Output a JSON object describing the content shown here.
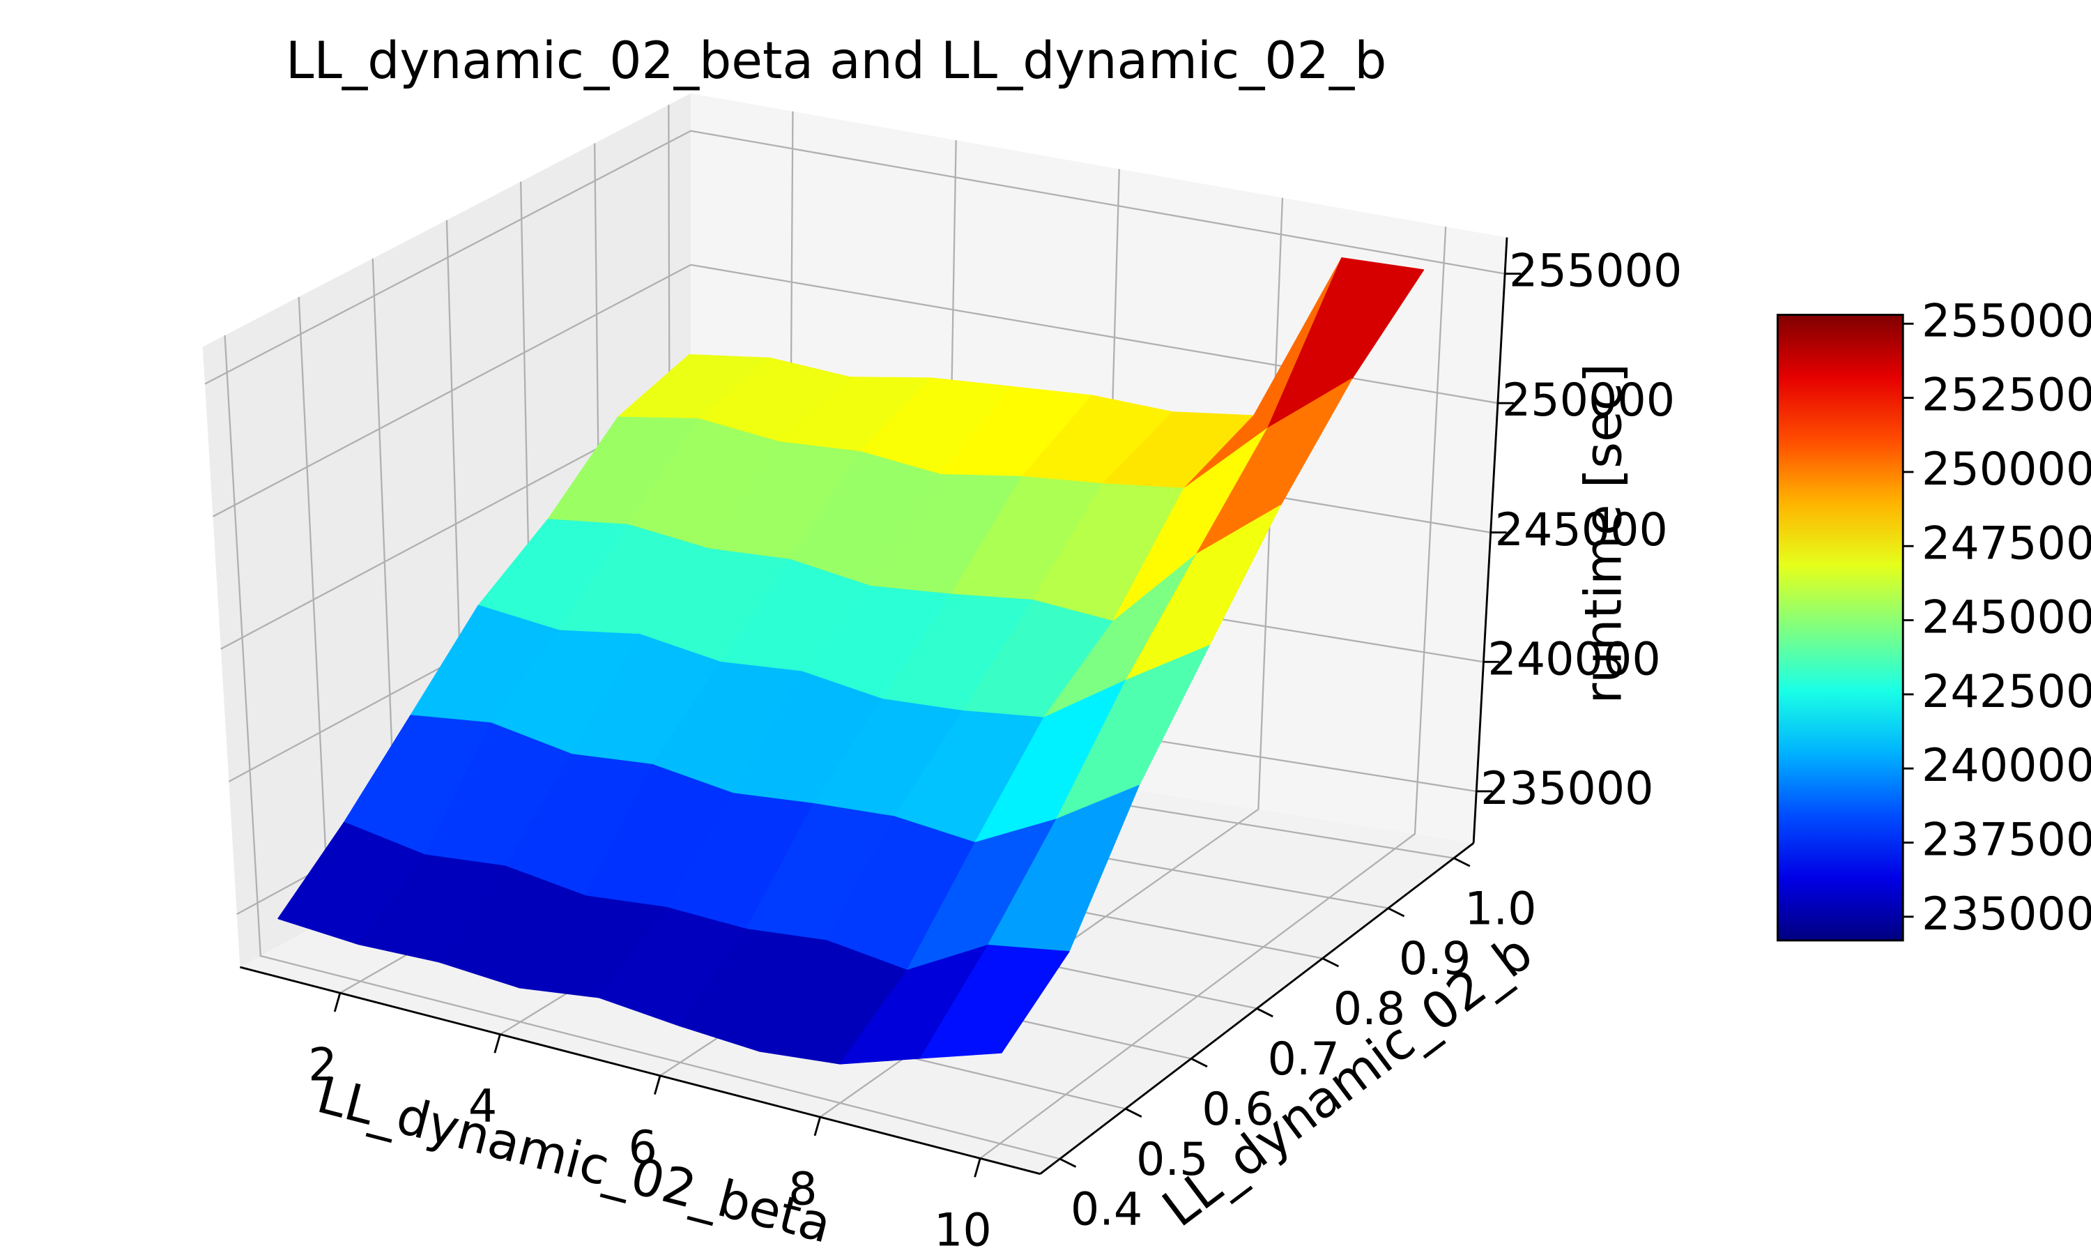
{
  "chart_data": {
    "type": "surface",
    "title": "LL_dynamic_02_beta and LL_dynamic_02_b",
    "x_label": "LL_dynamic_02_beta",
    "y_label": "LL_dynamic_02_b",
    "z_label": "runtime [sec]",
    "x": [
      1,
      2,
      3,
      4,
      5,
      6,
      7,
      8,
      9,
      10
    ],
    "y": [
      0.4,
      0.5,
      0.6,
      0.7,
      0.8,
      0.9,
      {
        "value": 1,
        "label": "1.0"
      }
    ],
    "z": [
      [
        234600,
        234400,
        234500,
        234300,
        234700,
        234400,
        234200,
        234500,
        235500,
        236500
      ],
      [
        236800,
        236300,
        236600,
        236200,
        236500,
        236400,
        236700,
        236300,
        238000,
        238500
      ],
      [
        239400,
        239800,
        239300,
        239600,
        239200,
        239500,
        239700,
        239400,
        241000,
        243000
      ],
      [
        242100,
        241800,
        242300,
        241900,
        242200,
        241800,
        242000,
        242400,
        244500,
        246500
      ],
      [
        243900,
        244300,
        244000,
        244200,
        243800,
        244100,
        244500,
        244300,
        247500,
        250000
      ],
      [
        246300,
        246800,
        246500,
        246700,
        246400,
        246900,
        247200,
        247600,
        250500,
        253000
      ],
      [
        247200,
        247600,
        247400,
        247900,
        248100,
        248300,
        248200,
        248600,
        255200,
        255300
      ]
    ],
    "colormap": "jet",
    "xlim": [
      0.75,
      10.75
    ],
    "ylim": [
      0.37,
      1.03
    ],
    "zlim": [
      233000,
      256400
    ],
    "xticks": [
      2,
      4,
      6,
      8,
      10
    ],
    "yticks": [
      0.4,
      0.5,
      0.6,
      0.7,
      0.8,
      0.9,
      {
        "value": 1,
        "label": "1.0"
      }
    ],
    "zticks": [
      235000,
      240000,
      245000,
      250000,
      255000
    ],
    "colorbar_ticks": [
      235000,
      237500,
      240000,
      242500,
      245000,
      247500,
      250000,
      252500,
      255000
    ],
    "grid": true
  }
}
